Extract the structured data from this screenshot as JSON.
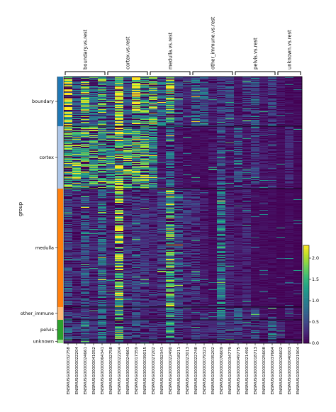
{
  "chart_data": {
    "type": "heatmap",
    "title": "",
    "ylabel": "group",
    "xlabel": "",
    "groups": [
      {
        "name": "boundary",
        "rows": 70,
        "color": "#1f77b4"
      },
      {
        "name": "cortex",
        "rows": 88,
        "color": "#aec7e8"
      },
      {
        "name": "medulla",
        "rows": 167,
        "color": "#ff7f0e"
      },
      {
        "name": "other_immune",
        "rows": 18,
        "color": "#ffbb78"
      },
      {
        "name": "pelvis",
        "rows": 28,
        "color": "#2ca02c"
      },
      {
        "name": "unknown",
        "rows": 5,
        "color": "#98df8a"
      }
    ],
    "gene_groups": [
      {
        "label": "boundary.vs.rest",
        "genes": [
          "ENSMUSG00000032758",
          "ENSMUSG00000022204",
          "ENSMUSG00000024661",
          "ENSMUSG00000041052",
          "ENSMUSG00000064341"
        ]
      },
      {
        "label": "cortex.vs.rest",
        "genes": [
          "ENSMUSG00000032758",
          "ENSMUSG00000022204",
          "ENSMUSG00000024661",
          "ENSMUSG00000017359",
          "ENSMUSG00000039015"
        ]
      },
      {
        "label": "medulla.vs.rest",
        "genes": [
          "ENSMUSG00000027202",
          "ENSMUSG00000092341",
          "ENSMUSG00000022490",
          "ENSMUSG00000018211",
          "ENSMUSG00000023013"
        ]
      },
      {
        "label": "other_immune.vs.rest",
        "genes": [
          "ENSMUSG00000022748",
          "ENSMUSG00000079323",
          "ENSMUSG00000035202",
          "ENSMUSG00000076609",
          "ENSMUSG00000034779"
        ]
      },
      {
        "label": "pelvis.vs.rest",
        "genes": [
          "ENSMUSG00000049775",
          "ENSMUSG00000021490",
          "ENSMUSG00000018713",
          "ENSMUSG00000025608",
          "ENSMUSG00000037664"
        ]
      },
      {
        "label": "unknown.vs.rest",
        "genes": [
          "ENSMUSG00000026602",
          "ENSMUSG00000040003",
          "ENSMUSG00000021904"
        ]
      }
    ],
    "colorbar": {
      "min": 0.0,
      "max": 2.3,
      "ticks": [
        "0.0",
        "0.5",
        "1.0",
        "1.5",
        "2.0"
      ],
      "colormap": "viridis"
    },
    "mean_expression_by_group": {
      "columns": 28,
      "boundary": [
        2.0,
        0.8,
        1.6,
        0.9,
        1.6,
        0.8,
        2.2,
        0.8,
        2.1,
        1.5,
        1.7,
        0.9,
        1.7,
        0.5,
        0.3,
        0.8,
        0.8,
        0.3,
        0.5,
        0.6,
        0.2,
        0.5,
        0.7,
        0.2,
        0.5,
        0.2,
        0.1,
        0.1
      ],
      "cortex": [
        1.6,
        1.6,
        1.6,
        1.5,
        1.4,
        1.4,
        2.0,
        1.6,
        1.6,
        1.6,
        1.2,
        0.2,
        0.9,
        0.2,
        0.1,
        0.1,
        0.1,
        0.2,
        0.6,
        0.2,
        0.7,
        0.2,
        0.5,
        0.2,
        0.2,
        0.1,
        0.3,
        0.1
      ],
      "medulla": [
        0.6,
        0.3,
        0.7,
        0.3,
        0.9,
        0.3,
        1.9,
        0.4,
        0.5,
        0.4,
        0.3,
        0.5,
        1.6,
        0.7,
        0.4,
        0.4,
        0.2,
        0.1,
        1.0,
        0.3,
        0.2,
        0.3,
        0.1,
        0.1,
        0.1,
        0.05,
        0.1,
        0.05
      ],
      "other_immune": [
        0.5,
        0.4,
        0.6,
        0.3,
        0.8,
        0.3,
        1.6,
        0.3,
        0.5,
        0.3,
        0.2,
        0.3,
        1.3,
        0.6,
        0.3,
        0.2,
        0.4,
        0.2,
        1.2,
        0.5,
        0.9,
        0.4,
        0.6,
        0.2,
        0.3,
        0.1,
        0.3,
        0.1
      ],
      "pelvis": [
        0.7,
        0.5,
        0.8,
        0.4,
        0.9,
        0.3,
        1.5,
        0.5,
        0.7,
        0.5,
        0.4,
        0.4,
        1.2,
        0.5,
        0.3,
        0.4,
        0.3,
        0.3,
        0.6,
        0.4,
        0.5,
        0.3,
        0.8,
        0.4,
        0.8,
        0.3,
        0.1,
        0.1
      ],
      "unknown": [
        0.4,
        0.3,
        0.5,
        0.2,
        0.6,
        0.2,
        1.0,
        0.2,
        0.3,
        0.2,
        0.2,
        0.2,
        0.8,
        0.3,
        0.2,
        0.2,
        0.2,
        0.1,
        0.5,
        0.2,
        0.3,
        0.2,
        0.3,
        0.2,
        0.3,
        0.1,
        0.2,
        0.1
      ]
    }
  }
}
